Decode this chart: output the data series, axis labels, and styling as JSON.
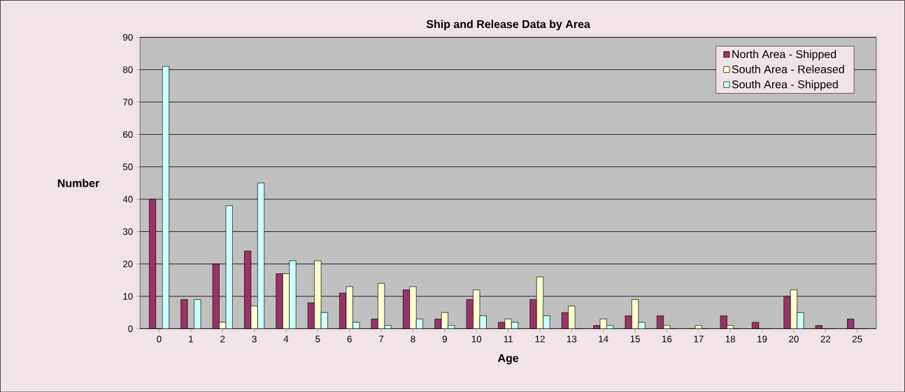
{
  "chart_data": {
    "type": "bar",
    "title": "Ship and Release Data by Area",
    "xlabel": "Age",
    "ylabel": "Number",
    "categories": [
      "0",
      "1",
      "2",
      "3",
      "4",
      "5",
      "6",
      "7",
      "8",
      "9",
      "10",
      "11",
      "12",
      "13",
      "14",
      "15",
      "16",
      "17",
      "18",
      "19",
      "20",
      "22",
      "25"
    ],
    "series": [
      {
        "name": "North Area - Shipped",
        "color": "#993366",
        "values": [
          40,
          9,
          20,
          24,
          17,
          8,
          11,
          3,
          12,
          3,
          9,
          2,
          9,
          5,
          1,
          4,
          4,
          0,
          4,
          2,
          10,
          1,
          3
        ]
      },
      {
        "name": "South Area - Released",
        "color": "#ffffcc",
        "values": [
          0,
          0,
          2,
          7,
          17,
          21,
          13,
          14,
          13,
          5,
          12,
          3,
          16,
          7,
          3,
          9,
          1,
          1,
          1,
          0,
          12,
          0,
          0
        ]
      },
      {
        "name": "South Area - Shipped",
        "color": "#ccffff",
        "values": [
          81,
          9,
          38,
          45,
          21,
          5,
          2,
          1,
          3,
          1,
          4,
          2,
          4,
          0,
          1,
          2,
          0,
          0,
          0,
          0,
          5,
          0,
          0
        ]
      }
    ],
    "ylim": [
      0,
      90
    ],
    "yticks": [
      0,
      10,
      20,
      30,
      40,
      50,
      60,
      70,
      80,
      90
    ],
    "grid": "y",
    "legend": "top right"
  }
}
